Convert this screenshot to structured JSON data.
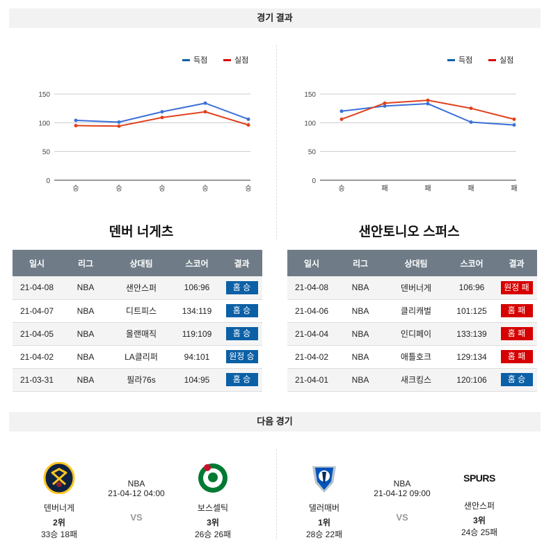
{
  "results_header": "경기 결과",
  "next_header": "다음 경기",
  "legend": {
    "scored": "득점",
    "conceded": "실점"
  },
  "colors": {
    "scored": "#3a6fd8",
    "conceded": "#e0401c",
    "legend_scored": "#0b60a6",
    "legend_conceded": "#d60000",
    "win": "#0b60a6",
    "loss": "#d60000"
  },
  "chart_data": [
    {
      "type": "line",
      "title": "덴버 너게츠",
      "categories": [
        "승",
        "승",
        "승",
        "승",
        "승"
      ],
      "series": [
        {
          "name": "득점",
          "values": [
            104,
            101,
            119,
            134,
            106
          ]
        },
        {
          "name": "실점",
          "values": [
            95,
            94,
            109,
            119,
            96
          ]
        }
      ],
      "yticks": [
        0,
        50,
        100,
        150
      ],
      "ylim": [
        0,
        180
      ],
      "legend": "top-right",
      "grid": true
    },
    {
      "type": "line",
      "title": "샌안토니오 스퍼스",
      "categories": [
        "승",
        "패",
        "패",
        "패",
        "패"
      ],
      "series": [
        {
          "name": "득점",
          "values": [
            120,
            129,
            133,
            101,
            96
          ]
        },
        {
          "name": "실점",
          "values": [
            106,
            134,
            139,
            125,
            106
          ]
        }
      ],
      "yticks": [
        0,
        50,
        100,
        150
      ],
      "ylim": [
        0,
        180
      ],
      "legend": "top-right",
      "grid": true
    }
  ],
  "columns": [
    "일시",
    "리그",
    "상대팀",
    "스코어",
    "결과"
  ],
  "teams": [
    {
      "name": "덴버 너게츠",
      "rows": [
        [
          "21-04-08",
          "NBA",
          "샌안스퍼",
          "106:96",
          "홈 승",
          "win"
        ],
        [
          "21-04-07",
          "NBA",
          "디트피스",
          "134:119",
          "홈 승",
          "win"
        ],
        [
          "21-04-05",
          "NBA",
          "올랜매직",
          "119:109",
          "홈 승",
          "win"
        ],
        [
          "21-04-02",
          "NBA",
          "LA클리퍼",
          "94:101",
          "원정 승",
          "win"
        ],
        [
          "21-03-31",
          "NBA",
          "필라76s",
          "104:95",
          "홈 승",
          "win"
        ]
      ]
    },
    {
      "name": "샌안토니오 스퍼스",
      "rows": [
        [
          "21-04-08",
          "NBA",
          "덴버너게",
          "106:96",
          "원정 패",
          "loss"
        ],
        [
          "21-04-06",
          "NBA",
          "클리캐벌",
          "101:125",
          "홈 패",
          "loss"
        ],
        [
          "21-04-04",
          "NBA",
          "인디페이",
          "133:139",
          "홈 패",
          "loss"
        ],
        [
          "21-04-02",
          "NBA",
          "애틀호크",
          "129:134",
          "홈 패",
          "loss"
        ],
        [
          "21-04-01",
          "NBA",
          "새크킹스",
          "120:106",
          "홈 승",
          "win"
        ]
      ]
    }
  ],
  "next_games": [
    {
      "league": "NBA",
      "datetime": "21-04-12 04:00",
      "vs": "VS",
      "home": {
        "name": "덴버너게",
        "rank": "2위",
        "record": "33승 18패"
      },
      "away": {
        "name": "보스셀틱",
        "rank": "3위",
        "record": "26승 26패"
      }
    },
    {
      "league": "NBA",
      "datetime": "21-04-12 09:00",
      "vs": "VS",
      "home": {
        "name": "댈러매버",
        "rank": "1위",
        "record": "28승 22패"
      },
      "away": {
        "name": "샌안스퍼",
        "rank": "3위",
        "record": "24승 25패",
        "logo_text": "SPURS"
      }
    }
  ]
}
